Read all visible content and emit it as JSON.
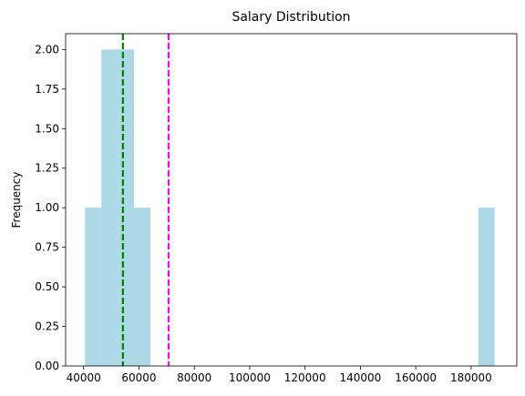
{
  "chart_data": {
    "type": "histogram",
    "title": "Salary Distribution",
    "xlabel": "",
    "ylabel": "Frequency",
    "xlim": [
      33500,
      196500
    ],
    "ylim": [
      0,
      2.1
    ],
    "grid": false,
    "bin_width": 5900,
    "bars": [
      {
        "x0": 40500,
        "x1": 46400,
        "count": 1
      },
      {
        "x0": 46400,
        "x1": 52300,
        "count": 2
      },
      {
        "x0": 52300,
        "x1": 58200,
        "count": 2
      },
      {
        "x0": 58200,
        "x1": 64100,
        "count": 1
      },
      {
        "x0": 182600,
        "x1": 188500,
        "count": 1
      }
    ],
    "bar_color": "#add8e6",
    "reference_lines": [
      {
        "x": 54200,
        "color": "#008000",
        "style": "dashed"
      },
      {
        "x": 70700,
        "color": "#ff00ff",
        "style": "dashed"
      }
    ],
    "x_ticks": [
      {
        "value": 40000,
        "label": "40000"
      },
      {
        "value": 60000,
        "label": "60000"
      },
      {
        "value": 80000,
        "label": "80000"
      },
      {
        "value": 100000,
        "label": "100000"
      },
      {
        "value": 120000,
        "label": "120000"
      },
      {
        "value": 140000,
        "label": "140000"
      },
      {
        "value": 160000,
        "label": "160000"
      },
      {
        "value": 180000,
        "label": "180000"
      }
    ],
    "y_ticks": [
      {
        "value": 0,
        "label": "0.00"
      },
      {
        "value": 0.25,
        "label": "0.25"
      },
      {
        "value": 0.5,
        "label": "0.50"
      },
      {
        "value": 0.75,
        "label": "0.75"
      },
      {
        "value": 1.0,
        "label": "1.00"
      },
      {
        "value": 1.25,
        "label": "1.25"
      },
      {
        "value": 1.5,
        "label": "1.50"
      },
      {
        "value": 1.75,
        "label": "1.75"
      },
      {
        "value": 2.0,
        "label": "2.00"
      }
    ]
  }
}
